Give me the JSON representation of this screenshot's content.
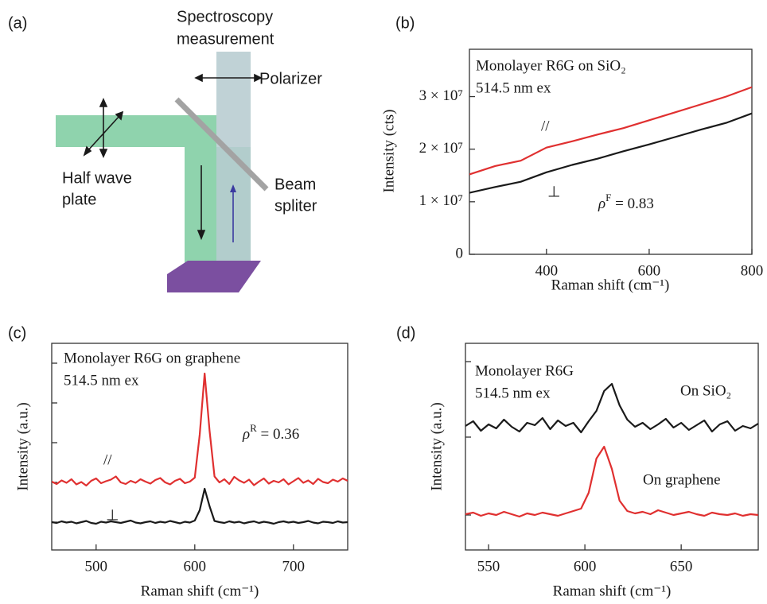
{
  "diagram": {
    "label": "(a)",
    "spectroscopy": [
      "Spectroscopy",
      "measurement"
    ],
    "polarizer": "Polarizer",
    "half_wave_plate": [
      "Half wave",
      "plate"
    ],
    "beam_splitter": [
      "Beam",
      "spliter"
    ]
  },
  "chart_data": [
    {
      "type": "line",
      "label": "(b)",
      "lines": [
        "Monolayer R6G on SiO₂",
        "514.5 nm ex"
      ],
      "rho": {
        "symbol": "ρ",
        "superscript": "F",
        "text": " = 0.83"
      },
      "x_label": "Raman shift (cm⁻¹)",
      "y_label": "Intensity (cts)",
      "xlim": [
        250,
        800
      ],
      "xticks": [
        400,
        600,
        800
      ],
      "ylim": [
        0,
        39000000
      ],
      "yticks": [
        {
          "value": 0,
          "label": "0"
        },
        {
          "value": 10000000,
          "label": "1 × 10⁷"
        },
        {
          "value": 20000000,
          "label": "2 × 10⁷"
        },
        {
          "value": 30000000,
          "label": "3 × 10⁷"
        }
      ],
      "ytick_labels": true,
      "x": [
        250,
        300,
        350,
        400,
        450,
        500,
        550,
        600,
        650,
        700,
        750,
        800
      ],
      "series": [
        {
          "name": "//",
          "color": "#e03030",
          "values": [
            15200000,
            16800000,
            17800000,
            20300000,
            21500000,
            22800000,
            24000000,
            25500000,
            27000000,
            28500000,
            30000000,
            31800000
          ]
        },
        {
          "name": "⊥",
          "color": "#1a1a1a",
          "values": [
            11700000,
            12800000,
            13800000,
            15600000,
            17000000,
            18200000,
            19600000,
            20900000,
            22300000,
            23700000,
            25000000,
            26800000
          ]
        }
      ]
    },
    {
      "type": "line",
      "label": "(c)",
      "lines": [
        "Monolayer R6G on graphene",
        "514.5 nm ex"
      ],
      "rho": {
        "symbol": "ρ",
        "superscript": "R",
        "text": " = 0.36"
      },
      "x_label": "Raman shift (cm⁻¹)",
      "y_label": "Intensity (a.u.)",
      "xlim": [
        455,
        755
      ],
      "xticks": [
        500,
        600,
        700
      ],
      "ylim": [
        0,
        5.2
      ],
      "yticks": [
        0.7,
        1.7,
        2.7,
        3.7,
        4.7
      ],
      "ytick_labels": false,
      "x": [
        455,
        460,
        465,
        470,
        475,
        480,
        485,
        490,
        495,
        500,
        505,
        510,
        515,
        520,
        525,
        530,
        535,
        540,
        545,
        550,
        555,
        560,
        565,
        570,
        575,
        580,
        585,
        590,
        595,
        600,
        605,
        610,
        615,
        620,
        625,
        630,
        635,
        640,
        645,
        650,
        655,
        660,
        665,
        670,
        675,
        680,
        685,
        690,
        695,
        700,
        705,
        710,
        715,
        720,
        725,
        730,
        735,
        740,
        745,
        750,
        755
      ],
      "series": [
        {
          "name": "//",
          "color": "#e03030",
          "values": [
            1.72,
            1.66,
            1.75,
            1.69,
            1.78,
            1.65,
            1.71,
            1.62,
            1.74,
            1.8,
            1.68,
            1.73,
            1.77,
            1.85,
            1.7,
            1.66,
            1.74,
            1.69,
            1.78,
            1.72,
            1.67,
            1.76,
            1.81,
            1.7,
            1.65,
            1.74,
            1.79,
            1.68,
            1.72,
            1.82,
            2.9,
            4.44,
            3.0,
            1.85,
            1.7,
            1.78,
            1.66,
            1.84,
            1.75,
            1.69,
            1.77,
            1.63,
            1.72,
            1.8,
            1.67,
            1.74,
            1.7,
            1.78,
            1.65,
            1.73,
            1.81,
            1.69,
            1.75,
            1.66,
            1.79,
            1.71,
            1.68,
            1.77,
            1.72,
            1.8,
            1.74
          ]
        },
        {
          "name": "⊥",
          "color": "#1a1a1a",
          "values": [
            0.7,
            0.68,
            0.72,
            0.69,
            0.71,
            0.67,
            0.7,
            0.73,
            0.68,
            0.66,
            0.71,
            0.69,
            0.72,
            0.7,
            0.68,
            0.71,
            0.74,
            0.69,
            0.67,
            0.7,
            0.72,
            0.68,
            0.71,
            0.69,
            0.73,
            0.7,
            0.67,
            0.71,
            0.69,
            0.74,
            1.0,
            1.54,
            1.1,
            0.73,
            0.7,
            0.68,
            0.72,
            0.69,
            0.71,
            0.67,
            0.7,
            0.72,
            0.68,
            0.71,
            0.69,
            0.66,
            0.7,
            0.72,
            0.69,
            0.71,
            0.68,
            0.7,
            0.73,
            0.69,
            0.67,
            0.71,
            0.7,
            0.68,
            0.72,
            0.69,
            0.7
          ]
        }
      ]
    },
    {
      "type": "line",
      "label": "(d)",
      "lines": [
        "Monolayer R6G",
        "514.5 nm ex"
      ],
      "x_label": "Raman shift (cm⁻¹)",
      "y_label": "Intensity (a.u.)",
      "xlim": [
        538,
        690
      ],
      "xticks": [
        550,
        600,
        650
      ],
      "ylim": [
        0,
        2.6
      ],
      "yticks": [
        0.44,
        1.42,
        2.37
      ],
      "ytick_labels": false,
      "x": [
        538,
        542,
        546,
        550,
        554,
        558,
        562,
        566,
        570,
        574,
        578,
        582,
        586,
        590,
        594,
        598,
        602,
        606,
        610,
        614,
        618,
        622,
        626,
        630,
        634,
        638,
        642,
        646,
        650,
        654,
        658,
        662,
        666,
        670,
        674,
        678,
        682,
        686,
        690
      ],
      "series": [
        {
          "name": "On SiO₂",
          "color": "#1a1a1a",
          "values": [
            1.56,
            1.62,
            1.5,
            1.58,
            1.53,
            1.64,
            1.55,
            1.49,
            1.6,
            1.57,
            1.66,
            1.52,
            1.63,
            1.56,
            1.6,
            1.48,
            1.62,
            1.75,
            2.0,
            2.09,
            1.82,
            1.64,
            1.55,
            1.6,
            1.52,
            1.58,
            1.65,
            1.54,
            1.6,
            1.51,
            1.57,
            1.63,
            1.49,
            1.58,
            1.62,
            1.5,
            1.56,
            1.53,
            1.59
          ]
        },
        {
          "name": "On graphene",
          "color": "#e03030",
          "values": [
            0.45,
            0.47,
            0.43,
            0.46,
            0.44,
            0.48,
            0.45,
            0.42,
            0.46,
            0.44,
            0.47,
            0.45,
            0.43,
            0.46,
            0.49,
            0.52,
            0.72,
            1.15,
            1.3,
            1.02,
            0.62,
            0.49,
            0.46,
            0.48,
            0.45,
            0.5,
            0.47,
            0.44,
            0.46,
            0.48,
            0.45,
            0.43,
            0.47,
            0.45,
            0.44,
            0.46,
            0.43,
            0.45,
            0.44
          ]
        }
      ]
    }
  ]
}
